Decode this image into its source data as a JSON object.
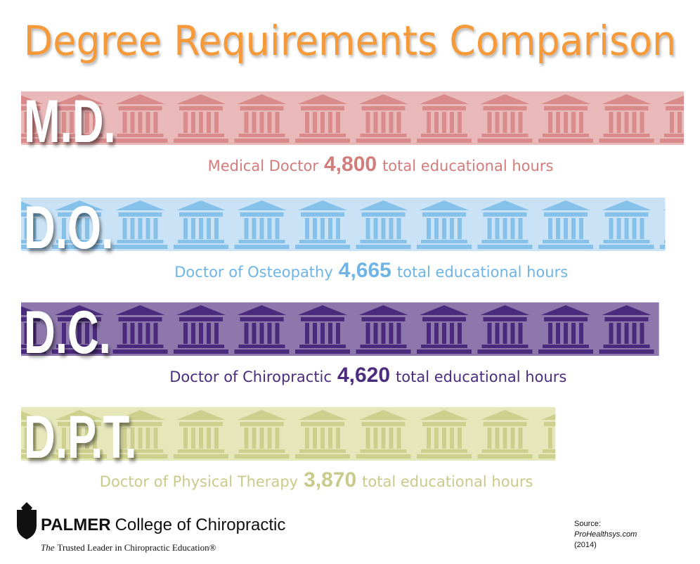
{
  "chart_data": {
    "type": "bar",
    "orientation": "horizontal",
    "title": "Degree Requirements Comparison",
    "categories": [
      "M.D.",
      "D.O.",
      "D.C.",
      "D.P.T."
    ],
    "names": [
      "Medical Doctor",
      "Doctor of Osteopathy",
      "Doctor of Chiropractic",
      "Doctor of Physical Therapy"
    ],
    "values": [
      4800,
      4665,
      4620,
      3870
    ],
    "value_labels": [
      "4,800",
      "4,665",
      "4,620",
      "3,870"
    ],
    "unit_label": "total educational hours",
    "bar_colors": [
      "#e9b9b9",
      "#c9e2f6",
      "#8d77ab",
      "#e5e7bb"
    ],
    "icon_colors": [
      "#d98b8b",
      "#86c1ea",
      "#4a2a7c",
      "#cdd08c"
    ],
    "text_colors": [
      "#d27c7c",
      "#6fb4e4",
      "#4b2c7e",
      "#c8cb8c"
    ]
  },
  "footer": {
    "logo_name": "PALMER",
    "logo_rest": "College of Chiropractic",
    "tagline_lead": "The",
    "tagline": "Trusted Leader in Chiropractic Education®",
    "source_label": "Source:",
    "source_site": "ProHealthsys.com",
    "source_year": "(2014)"
  }
}
